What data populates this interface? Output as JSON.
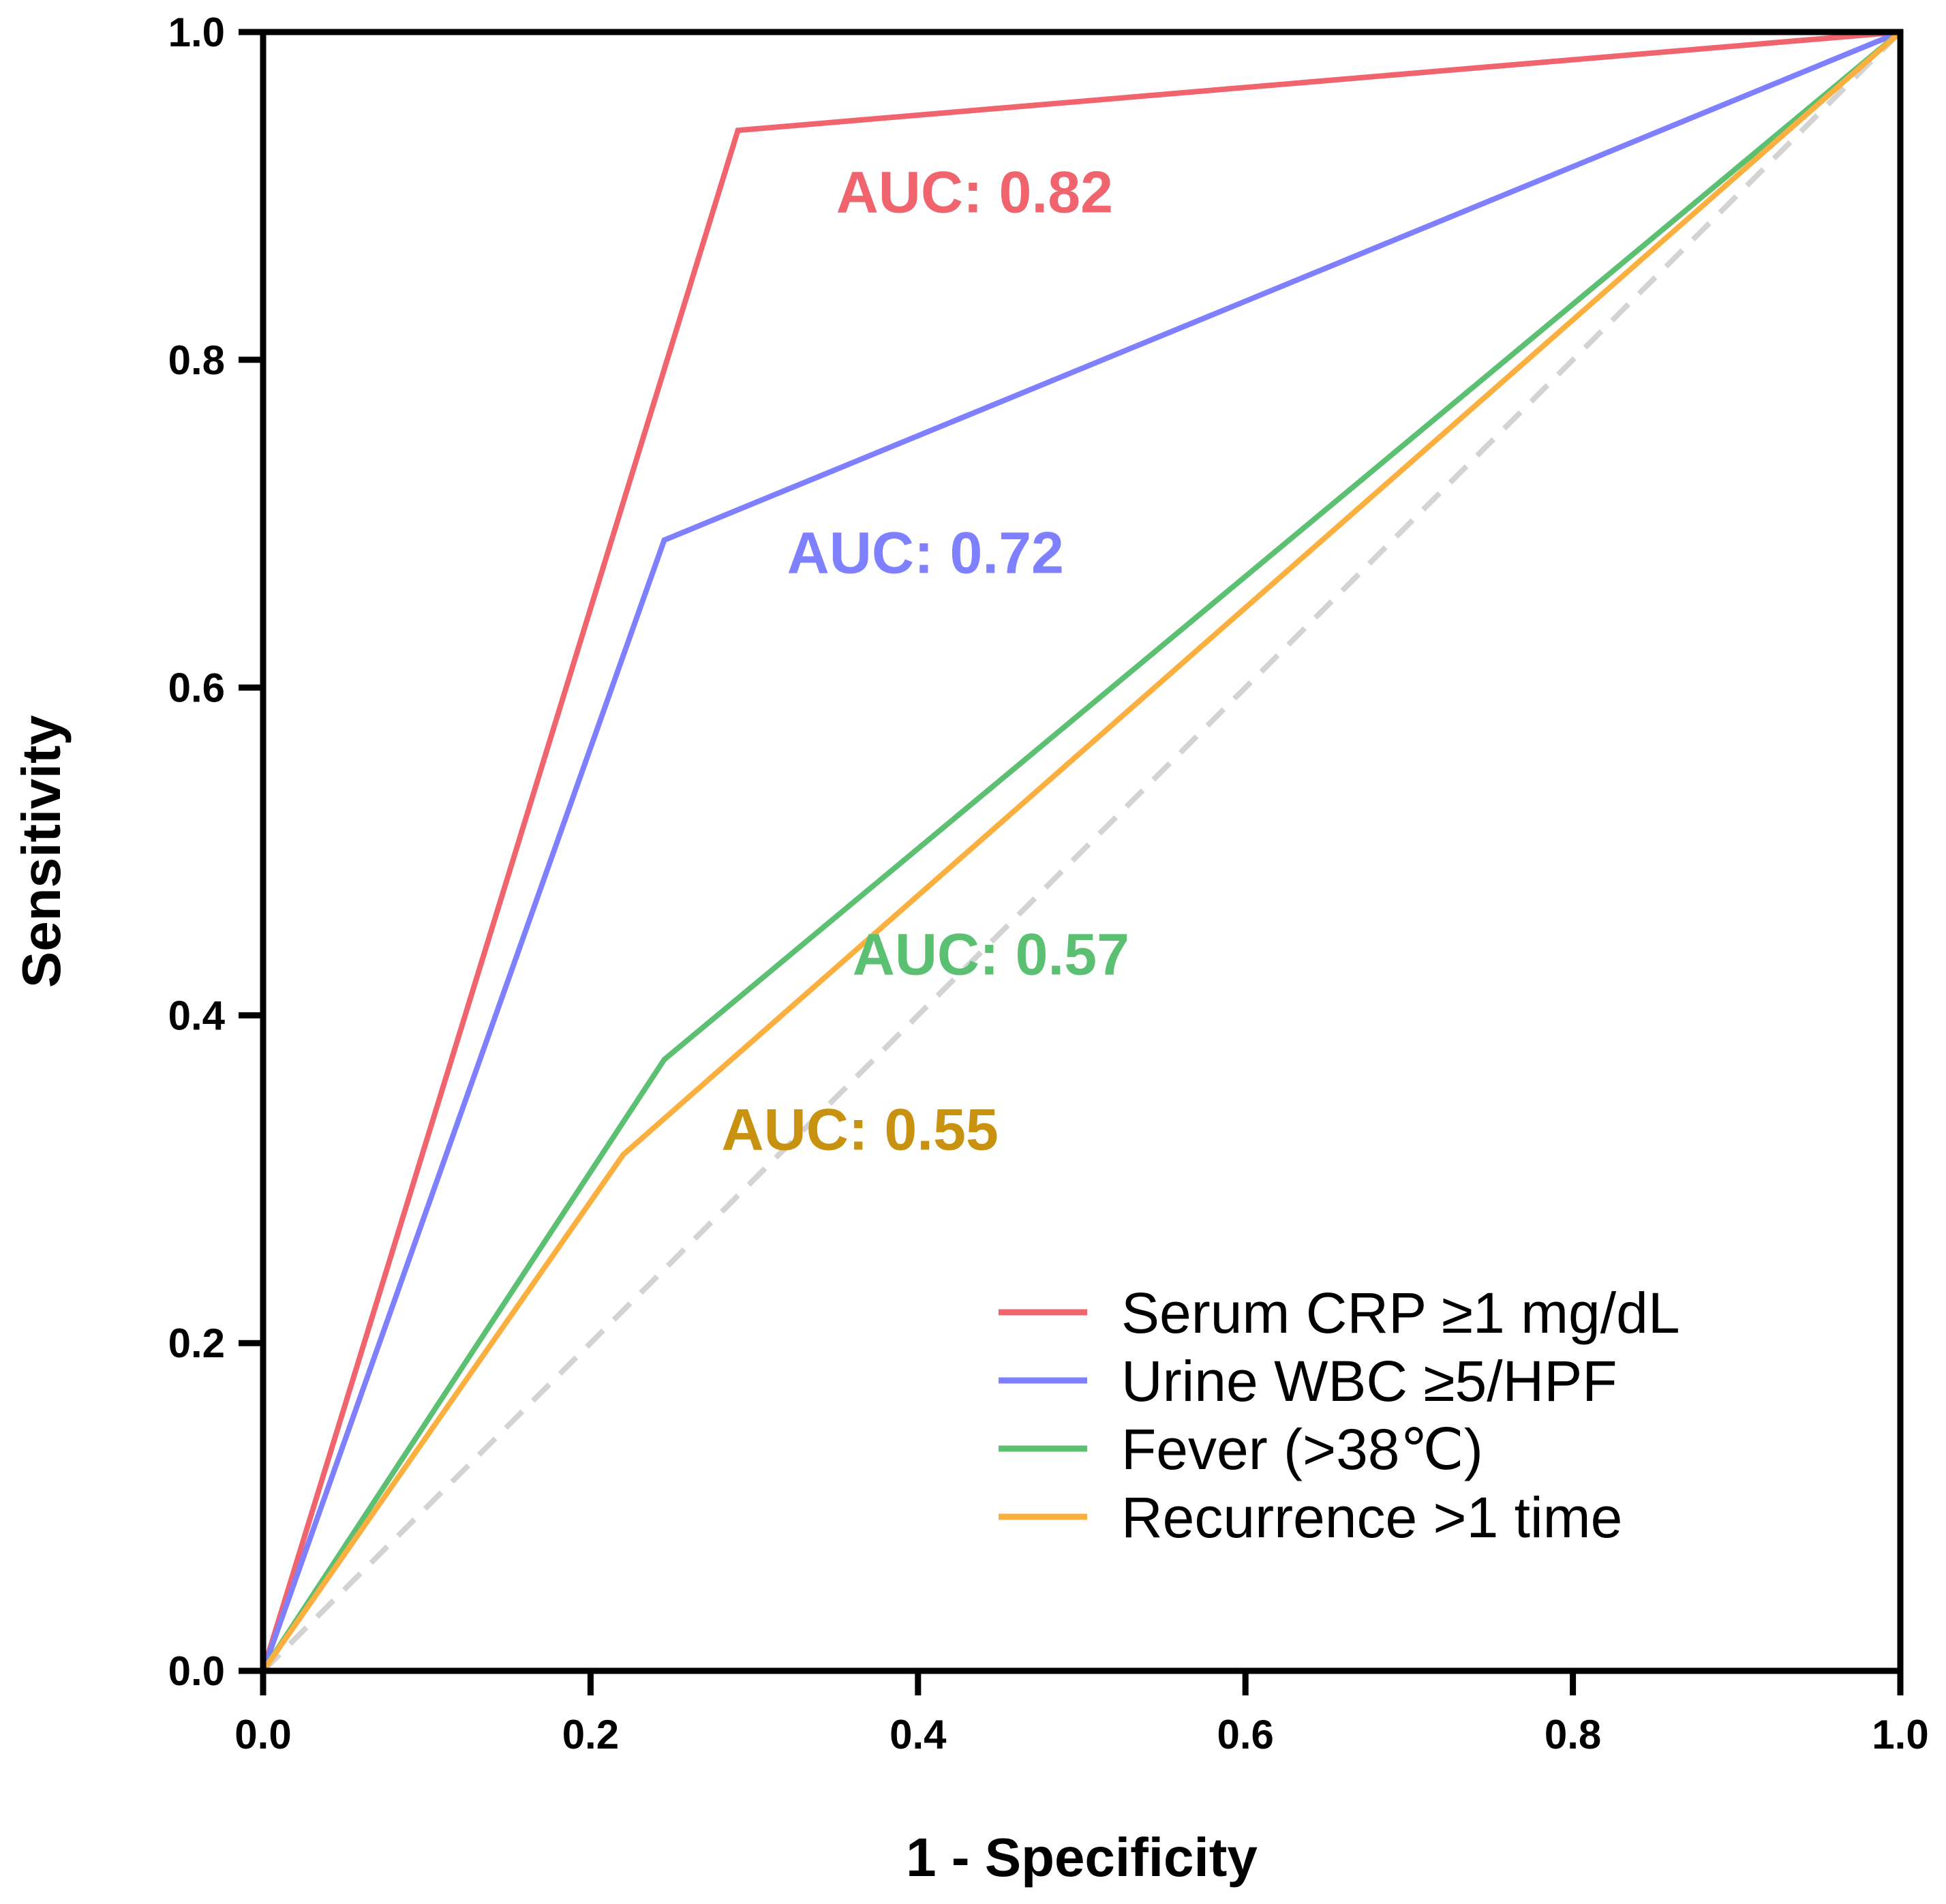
{
  "chart_data": {
    "type": "line",
    "xlabel": "1 - Specificity",
    "ylabel": "Sensitivity",
    "xlim": [
      0,
      1
    ],
    "ylim": [
      0,
      1
    ],
    "x_ticks": [
      "0.0",
      "0.2",
      "0.4",
      "0.6",
      "0.8",
      "1.0"
    ],
    "y_ticks": [
      "0.0",
      "0.2",
      "0.4",
      "0.6",
      "0.8",
      "1.0"
    ],
    "grid": false,
    "legend_position": "bottom-right",
    "reference_line": {
      "points": [
        [
          0,
          0
        ],
        [
          1,
          1
        ]
      ],
      "style": "dashed",
      "color": "#d3d3d3"
    },
    "series": [
      {
        "name": "Serum CRP ≥1 mg/dL",
        "color": "#f0646e",
        "auc_label": "AUC: 0.82",
        "label_color": "#f0646e",
        "label_anchor": [
          0.35,
          0.89
        ],
        "points": [
          [
            0,
            0
          ],
          [
            0.29,
            0.94
          ],
          [
            1,
            1
          ]
        ]
      },
      {
        "name": "Urine WBC ≥5/HPF",
        "color": "#7f80ff",
        "auc_label": "AUC: 0.72",
        "label_color": "#7f80ff",
        "label_anchor": [
          0.32,
          0.67
        ],
        "points": [
          [
            0,
            0
          ],
          [
            0.245,
            0.69
          ],
          [
            1,
            1
          ]
        ]
      },
      {
        "name": "Fever (>38℃)",
        "color": "#5cc072",
        "auc_label": "AUC: 0.57",
        "label_color": "#5cc072",
        "label_anchor": [
          0.36,
          0.425
        ],
        "points": [
          [
            0,
            0
          ],
          [
            0.245,
            0.373
          ],
          [
            1,
            1
          ]
        ]
      },
      {
        "name": "Recurrence >1 time",
        "color": "#fbaf3f",
        "auc_label": "AUC: 0.55",
        "label_color": "#c8910f",
        "label_anchor": [
          0.28,
          0.318
        ],
        "points": [
          [
            0,
            0
          ],
          [
            0.22,
            0.315
          ],
          [
            1,
            1
          ]
        ]
      }
    ]
  }
}
